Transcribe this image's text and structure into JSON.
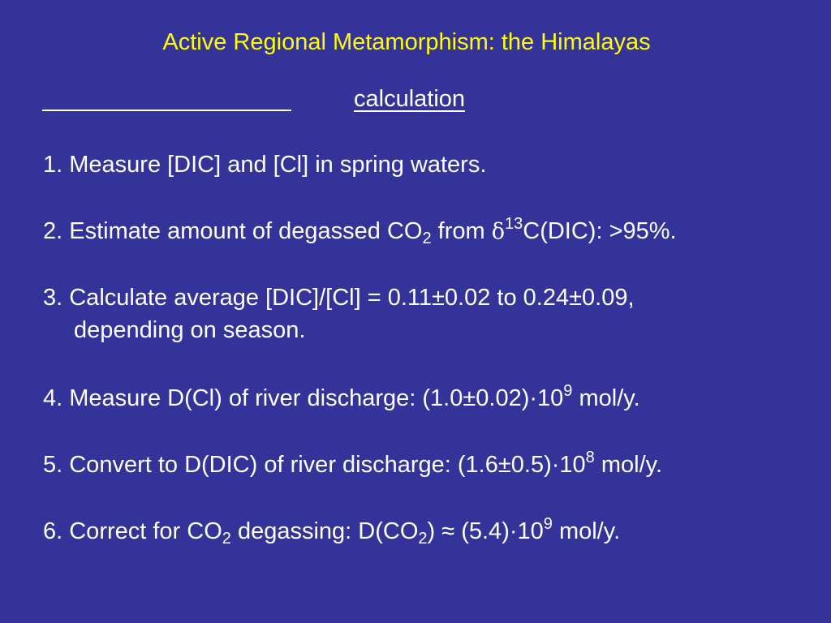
{
  "title": "Active Regional Metamorphism: the Himalayas",
  "heading": "calculation",
  "steps": {
    "s1": {
      "text": "1. Measure [DIC] and [Cl] in spring waters."
    },
    "s2": {
      "pre": "2. Estimate amount of degassed CO",
      "sub": "2",
      "mid": " from ",
      "delta": "δ",
      "sup": "13",
      "post": "C(DIC): >95%."
    },
    "s3": {
      "line1": "3. Calculate average [DIC]/[Cl] = 0.11±0.02 to 0.24±0.09,",
      "line2": "depending on season."
    },
    "s4": {
      "pre": "4. Measure D(Cl) of river discharge: (1.0±0.02)·10",
      "sup": "9",
      "post": " mol/y."
    },
    "s5": {
      "pre": "5. Convert to D(DIC) of river discharge: (1.6±0.5)·10",
      "sup": "8",
      "post": " mol/y."
    },
    "s6": {
      "pre": "6. Correct for CO",
      "sub1": "2",
      "mid1": " degassing: D(CO",
      "sub2": "2",
      "mid2": ") ≈ (5.4)·10",
      "sup": "9",
      "post": " mol/y."
    }
  },
  "colors": {
    "background": "#333399",
    "title": "#ffff00",
    "text": "#ffffff"
  }
}
